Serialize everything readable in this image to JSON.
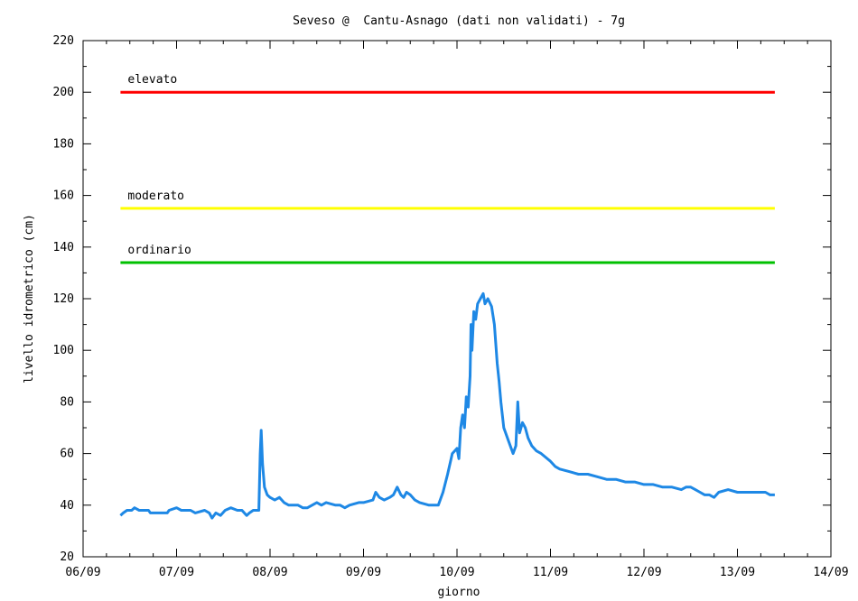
{
  "chart_data": {
    "type": "line",
    "title": "Seveso @  Cantu-Asnago (dati non validati) - 7g",
    "xlabel": "giorno",
    "ylabel": "livello idrometrico (cm)",
    "x_ticks": [
      "06/09",
      "07/09",
      "08/09",
      "09/09",
      "10/09",
      "11/09",
      "12/09",
      "13/09",
      "14/09"
    ],
    "x_range_days": [
      0,
      8
    ],
    "y_ticks": [
      20,
      40,
      60,
      80,
      100,
      120,
      140,
      160,
      180,
      200,
      220
    ],
    "ylim": [
      20,
      220
    ],
    "grid": false,
    "thresholds": [
      {
        "label": "elevato",
        "value": 200,
        "color": "#ff0000"
      },
      {
        "label": "moderato",
        "value": 155,
        "color": "#ffff00"
      },
      {
        "label": "ordinario",
        "value": 134,
        "color": "#00c000"
      }
    ],
    "series": [
      {
        "color": "#1e88e5",
        "points": [
          [
            0.4,
            36
          ],
          [
            0.43,
            37
          ],
          [
            0.47,
            38
          ],
          [
            0.52,
            38
          ],
          [
            0.55,
            39
          ],
          [
            0.6,
            38
          ],
          [
            0.7,
            38
          ],
          [
            0.72,
            37
          ],
          [
            0.85,
            37
          ],
          [
            0.9,
            37
          ],
          [
            0.92,
            38
          ],
          [
            1.0,
            39
          ],
          [
            1.05,
            38
          ],
          [
            1.15,
            38
          ],
          [
            1.2,
            37
          ],
          [
            1.3,
            38
          ],
          [
            1.35,
            37
          ],
          [
            1.38,
            35
          ],
          [
            1.42,
            37
          ],
          [
            1.47,
            36
          ],
          [
            1.52,
            38
          ],
          [
            1.58,
            39
          ],
          [
            1.65,
            38
          ],
          [
            1.7,
            38
          ],
          [
            1.75,
            36
          ],
          [
            1.78,
            37
          ],
          [
            1.82,
            38
          ],
          [
            1.86,
            38
          ],
          [
            1.88,
            38
          ],
          [
            1.895,
            60
          ],
          [
            1.905,
            69
          ],
          [
            1.92,
            56
          ],
          [
            1.94,
            47
          ],
          [
            1.97,
            44
          ],
          [
            2.0,
            43
          ],
          [
            2.05,
            42
          ],
          [
            2.1,
            43
          ],
          [
            2.15,
            41
          ],
          [
            2.2,
            40
          ],
          [
            2.3,
            40
          ],
          [
            2.35,
            39
          ],
          [
            2.4,
            39
          ],
          [
            2.45,
            40
          ],
          [
            2.5,
            41
          ],
          [
            2.55,
            40
          ],
          [
            2.6,
            41
          ],
          [
            2.7,
            40
          ],
          [
            2.75,
            40
          ],
          [
            2.8,
            39
          ],
          [
            2.85,
            40
          ],
          [
            2.95,
            41
          ],
          [
            3.0,
            41
          ],
          [
            3.1,
            42
          ],
          [
            3.13,
            45
          ],
          [
            3.17,
            43
          ],
          [
            3.22,
            42
          ],
          [
            3.28,
            43
          ],
          [
            3.32,
            44
          ],
          [
            3.36,
            47
          ],
          [
            3.4,
            44
          ],
          [
            3.43,
            43
          ],
          [
            3.46,
            45
          ],
          [
            3.5,
            44
          ],
          [
            3.55,
            42
          ],
          [
            3.6,
            41
          ],
          [
            3.7,
            40
          ],
          [
            3.8,
            40
          ],
          [
            3.85,
            45
          ],
          [
            3.9,
            52
          ],
          [
            3.95,
            60
          ],
          [
            4.0,
            62
          ],
          [
            4.02,
            58
          ],
          [
            4.04,
            70
          ],
          [
            4.06,
            75
          ],
          [
            4.08,
            70
          ],
          [
            4.1,
            82
          ],
          [
            4.12,
            78
          ],
          [
            4.14,
            90
          ],
          [
            4.15,
            110
          ],
          [
            4.16,
            100
          ],
          [
            4.18,
            115
          ],
          [
            4.2,
            112
          ],
          [
            4.22,
            118
          ],
          [
            4.25,
            120
          ],
          [
            4.28,
            122
          ],
          [
            4.3,
            118
          ],
          [
            4.33,
            120
          ],
          [
            4.37,
            117
          ],
          [
            4.4,
            110
          ],
          [
            4.43,
            95
          ],
          [
            4.45,
            88
          ],
          [
            4.47,
            80
          ],
          [
            4.5,
            70
          ],
          [
            4.55,
            65
          ],
          [
            4.6,
            60
          ],
          [
            4.63,
            63
          ],
          [
            4.65,
            80
          ],
          [
            4.67,
            68
          ],
          [
            4.7,
            72
          ],
          [
            4.73,
            70
          ],
          [
            4.76,
            66
          ],
          [
            4.8,
            63
          ],
          [
            4.85,
            61
          ],
          [
            4.9,
            60
          ],
          [
            5.0,
            57
          ],
          [
            5.05,
            55
          ],
          [
            5.1,
            54
          ],
          [
            5.2,
            53
          ],
          [
            5.3,
            52
          ],
          [
            5.4,
            52
          ],
          [
            5.5,
            51
          ],
          [
            5.6,
            50
          ],
          [
            5.7,
            50
          ],
          [
            5.8,
            49
          ],
          [
            5.9,
            49
          ],
          [
            6.0,
            48
          ],
          [
            6.1,
            48
          ],
          [
            6.2,
            47
          ],
          [
            6.3,
            47
          ],
          [
            6.4,
            46
          ],
          [
            6.45,
            47
          ],
          [
            6.5,
            47
          ],
          [
            6.55,
            46
          ],
          [
            6.6,
            45
          ],
          [
            6.65,
            44
          ],
          [
            6.7,
            44
          ],
          [
            6.75,
            43
          ],
          [
            6.8,
            45
          ],
          [
            6.9,
            46
          ],
          [
            7.0,
            45
          ],
          [
            7.1,
            45
          ],
          [
            7.2,
            45
          ],
          [
            7.3,
            45
          ],
          [
            7.35,
            44
          ],
          [
            7.4,
            44
          ]
        ]
      }
    ]
  }
}
